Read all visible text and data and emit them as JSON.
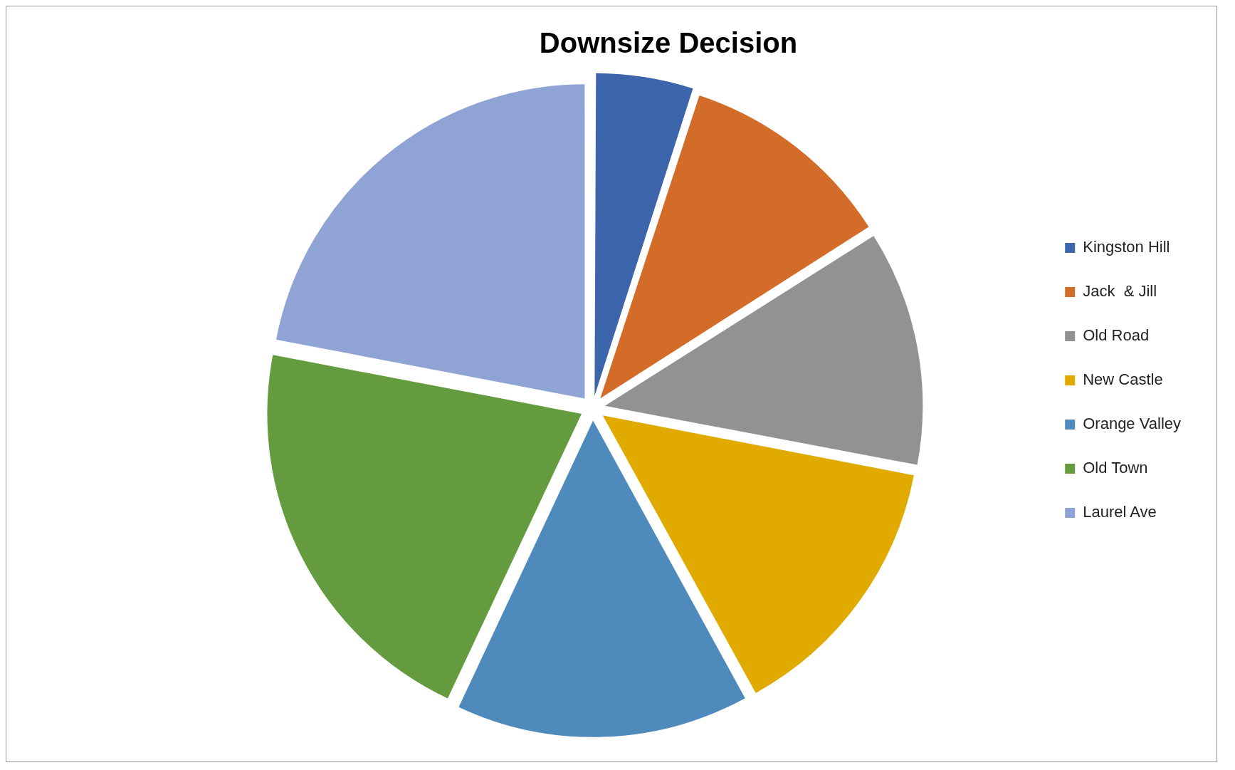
{
  "chart_data": {
    "type": "pie",
    "title": "Downsize Decision",
    "categories": [
      "Kingston Hill",
      "Jack  & Jill",
      "Old Road",
      "New Castle",
      "Orange Valley",
      "Old Town",
      "Laurel Ave"
    ],
    "values": [
      5,
      11,
      12,
      14,
      15,
      21,
      22
    ],
    "colors": [
      "#3d65ab",
      "#d46c29",
      "#929292",
      "#e0aa00",
      "#4f8abc",
      "#639b3e",
      "#8fa3d4"
    ],
    "legend": "right"
  }
}
